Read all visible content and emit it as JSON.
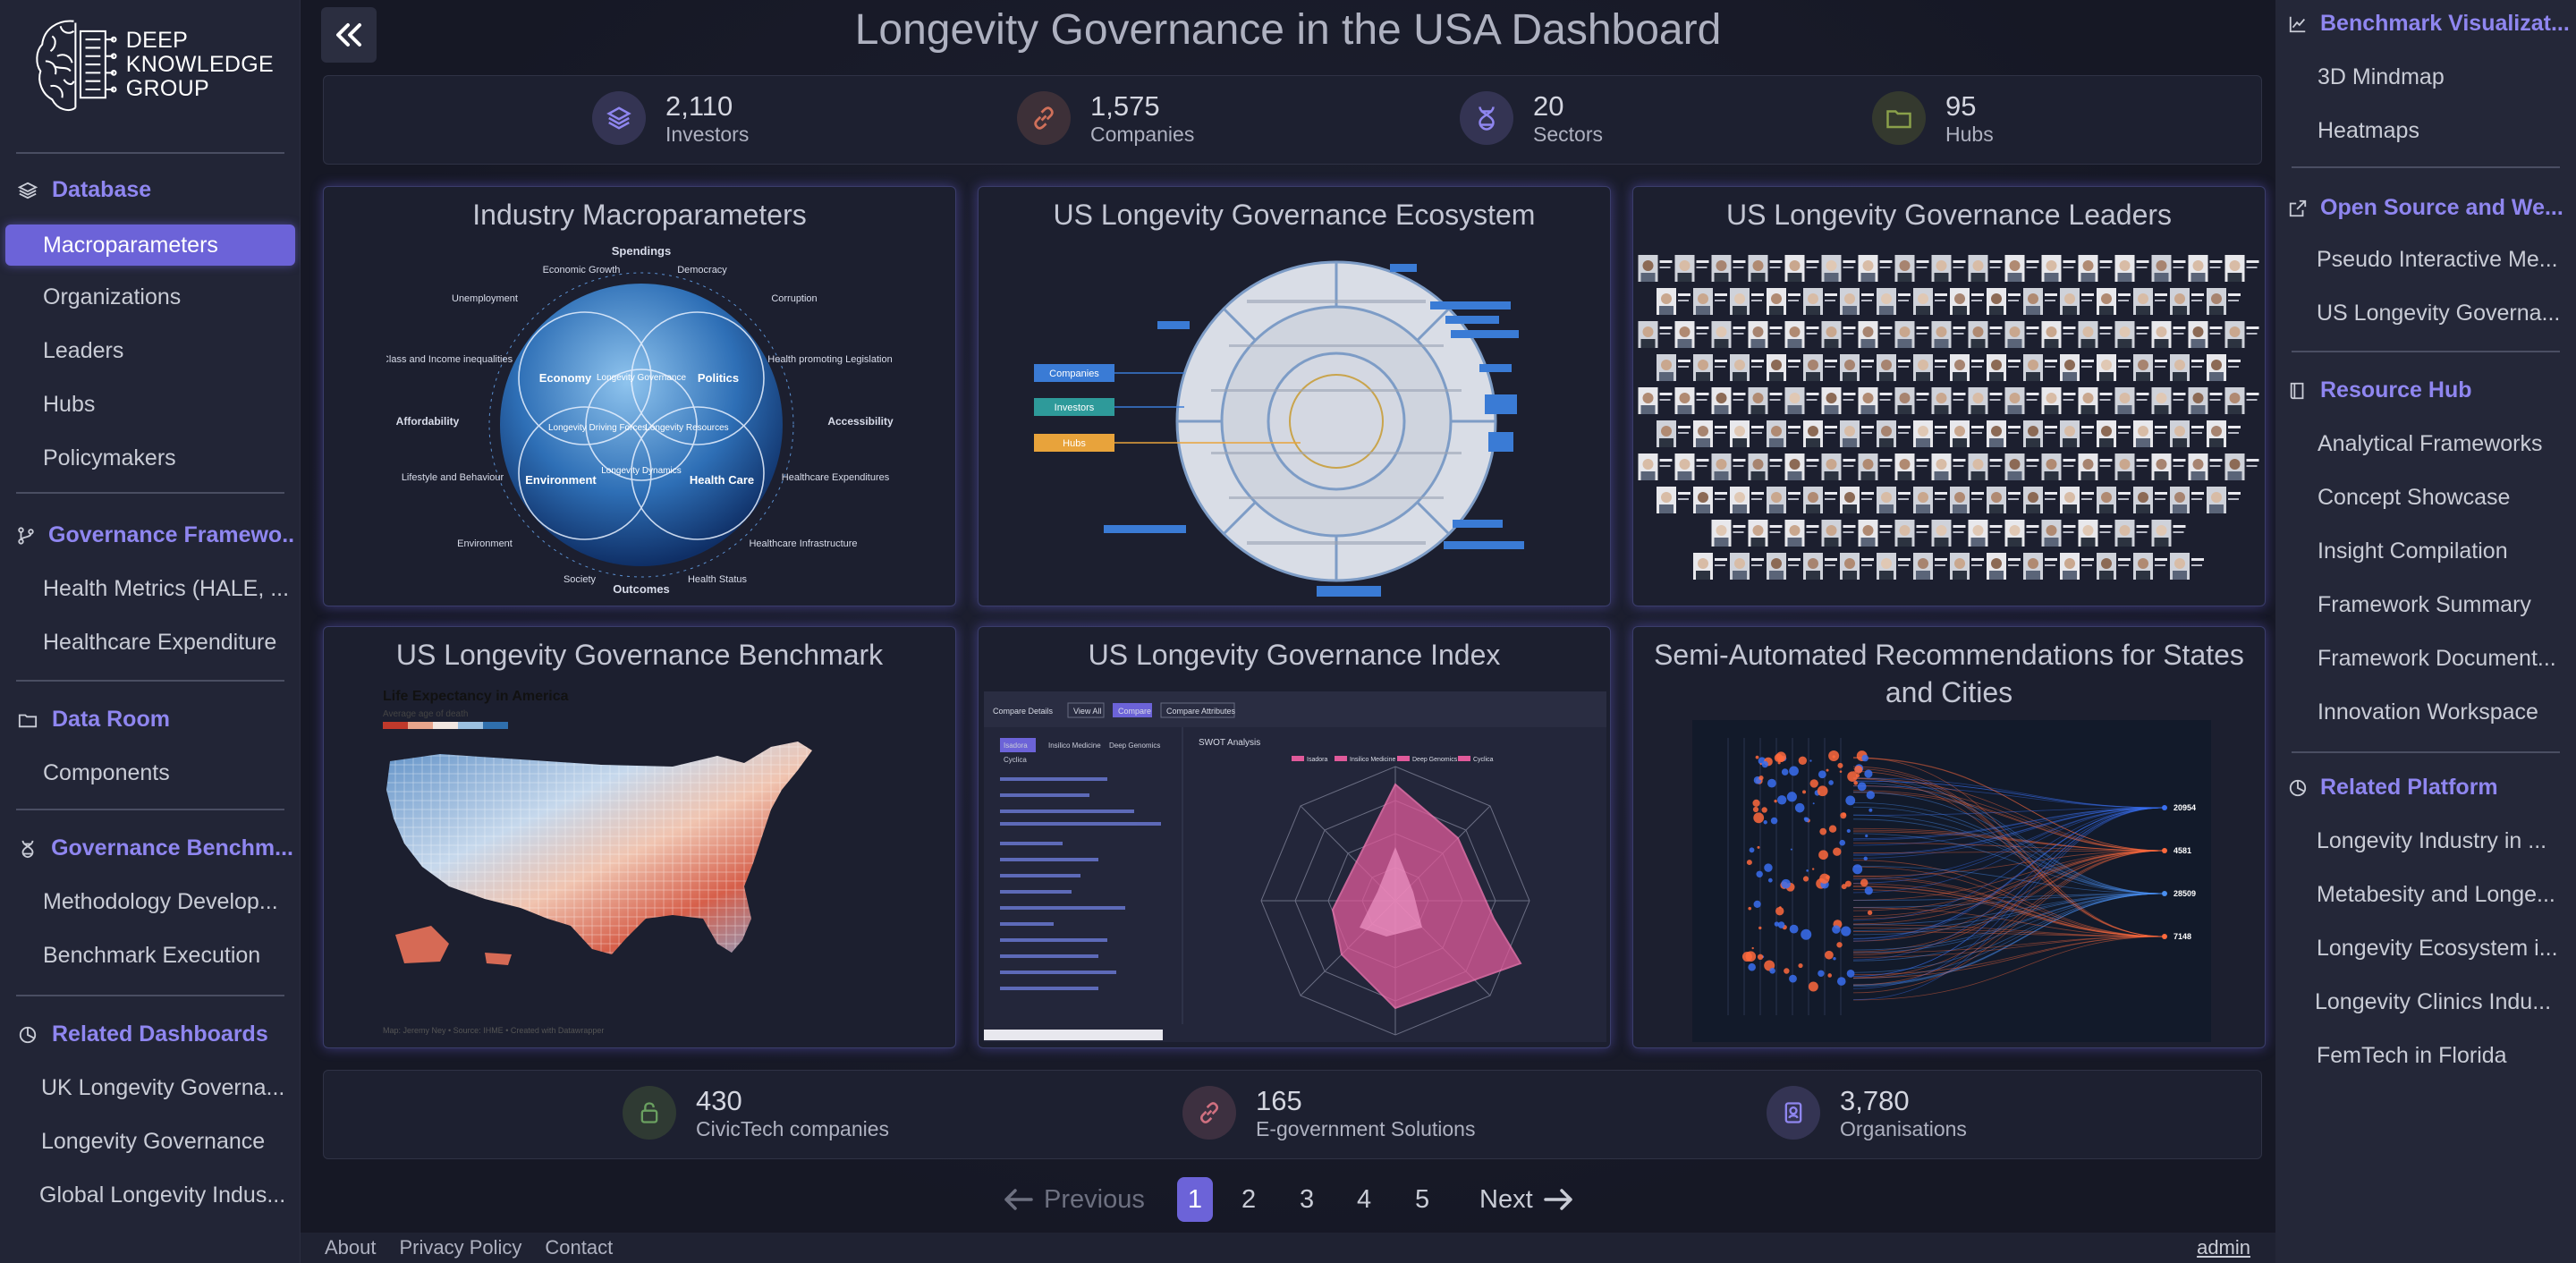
{
  "logo": {
    "line1": "DEEP",
    "line2": "KNOWLEDGE",
    "line3": "GROUP"
  },
  "sidebar": {
    "sections": [
      {
        "title": "Database",
        "icon": "layers-icon",
        "items": [
          "Macroparameters",
          "Organizations",
          "Leaders",
          "Hubs",
          "Policymakers"
        ]
      },
      {
        "title": "Governance Framewo...",
        "icon": "branch-icon",
        "items": [
          "Health Metrics (HALE, ...",
          "Healthcare Expenditure"
        ]
      },
      {
        "title": "Data Room",
        "icon": "folder-icon",
        "items": [
          "Components"
        ]
      },
      {
        "title": "Governance Benchm...",
        "icon": "dna-icon",
        "items": [
          "Methodology Develop...",
          "Benchmark Execution"
        ]
      },
      {
        "title": "Related Dashboards",
        "icon": "pie-icon",
        "items": [
          "UK Longevity Governa...",
          "Longevity Governance",
          "Global Longevity Indus..."
        ]
      }
    ],
    "active_item": "Macroparameters"
  },
  "header": {
    "title": "Longevity Governance in the USA Dashboard"
  },
  "stats_top": [
    {
      "value": "2,110",
      "label": "Investors",
      "icon": "layers-icon",
      "color": "#7b73e0"
    },
    {
      "value": "1,575",
      "label": "Companies",
      "icon": "link-icon",
      "color": "#d0705a"
    },
    {
      "value": "20",
      "label": "Sectors",
      "icon": "dna-icon",
      "color": "#7b73e0"
    },
    {
      "value": "95",
      "label": "Hubs",
      "icon": "folder-icon",
      "color": "#8aa04a"
    }
  ],
  "cards": [
    {
      "title": "Industry Macroparameters",
      "image": "globe-venn-diagram"
    },
    {
      "title": "US Longevity Governance Ecosystem",
      "image": "circular-ecosystem-map"
    },
    {
      "title": "US Longevity Governance Leaders",
      "image": "leaders-portrait-grid"
    },
    {
      "title": "US Longevity Governance Benchmark",
      "image": "us-county-heatmap"
    },
    {
      "title": "US Longevity Governance Index",
      "image": "swot-radar-chart"
    },
    {
      "title": "Semi-Automated Recommendations for States and Cities",
      "image": "sankey-scatter-chart"
    }
  ],
  "card_images": {
    "globe": {
      "top": "Spendings",
      "bottom": "Outcomes",
      "labels": [
        "Economic Growth",
        "Democracy",
        "Unemployment",
        "Corruption",
        "Class and Income inequalities",
        "Health promoting Legislation",
        "Affordability",
        "Accessibility",
        "Lifestyle and Behaviour",
        "Healthcare Expenditures",
        "Environment",
        "Healthcare Infrastructure",
        "Society",
        "Health Status"
      ],
      "circles": [
        "Economy",
        "Politics",
        "Environment",
        "Health Care"
      ],
      "inner": [
        "Longevity Governance",
        "Longevity Driving Forces",
        "Longevity Resources",
        "Longevity Dynamics"
      ]
    },
    "ecosystem": {
      "legend": [
        "Companies",
        "Investors",
        "Hubs"
      ],
      "legend_colors": [
        "#3a7bd5",
        "#2e9a9a",
        "#e8a33b"
      ]
    },
    "benchmark": {
      "title": "Life Expectancy in America",
      "subtitle": "Average age of death",
      "source": "Map: Jeremy Ney • Source: IHME • Created with Datawrapper"
    },
    "index": {
      "tabs": [
        "Compare Details",
        "View All",
        "Compare",
        "Compare Attributes"
      ],
      "chips": [
        "Isadora",
        "Insilico Medicine",
        "Deep Genomics",
        "Cyclica"
      ],
      "chart_title": "SWOT Analysis",
      "legend": [
        "Isadora",
        "Insilico Medicine",
        "Deep Genomics",
        "Cyclica"
      ]
    },
    "recommendations": {
      "values": [
        "20954",
        "4581",
        "28509",
        "7148"
      ]
    }
  },
  "stats_bottom": [
    {
      "value": "430",
      "label": "CivicTech companies",
      "icon": "lock-icon",
      "color": "#6aa060"
    },
    {
      "value": "165",
      "label": "E-government Solutions",
      "icon": "link-icon",
      "color": "#d07080"
    },
    {
      "value": "3,780",
      "label": "Organisations",
      "icon": "badge-icon",
      "color": "#7b73e0"
    }
  ],
  "pagination": {
    "previous": "Previous",
    "next": "Next",
    "pages": [
      "1",
      "2",
      "3",
      "4",
      "5"
    ],
    "current": "1"
  },
  "footer": {
    "about": "About",
    "privacy": "Privacy Policy",
    "contact": "Contact",
    "user": "admin"
  },
  "right_sidebar": {
    "sections": [
      {
        "title": "Benchmark Visualizat...",
        "icon": "chart-icon",
        "items": [
          "3D Mindmap",
          "Heatmaps"
        ]
      },
      {
        "title": "Open Source and We...",
        "icon": "external-link-icon",
        "items": [
          "Pseudo Interactive Me...",
          "US Longevity Governa..."
        ]
      },
      {
        "title": "Resource Hub",
        "icon": "book-icon",
        "items": [
          "Analytical Frameworks",
          "Concept Showcase",
          "Insight Compilation",
          "Framework Summary",
          "Framework Document...",
          "Innovation Workspace"
        ]
      },
      {
        "title": "Related Platform",
        "icon": "pie-icon",
        "items": [
          "Longevity Industry in ...",
          "Metabesity and Longe...",
          "Longevity Ecosystem i...",
          "Longevity Clinics Indu...",
          "FemTech in Florida"
        ]
      }
    ]
  }
}
